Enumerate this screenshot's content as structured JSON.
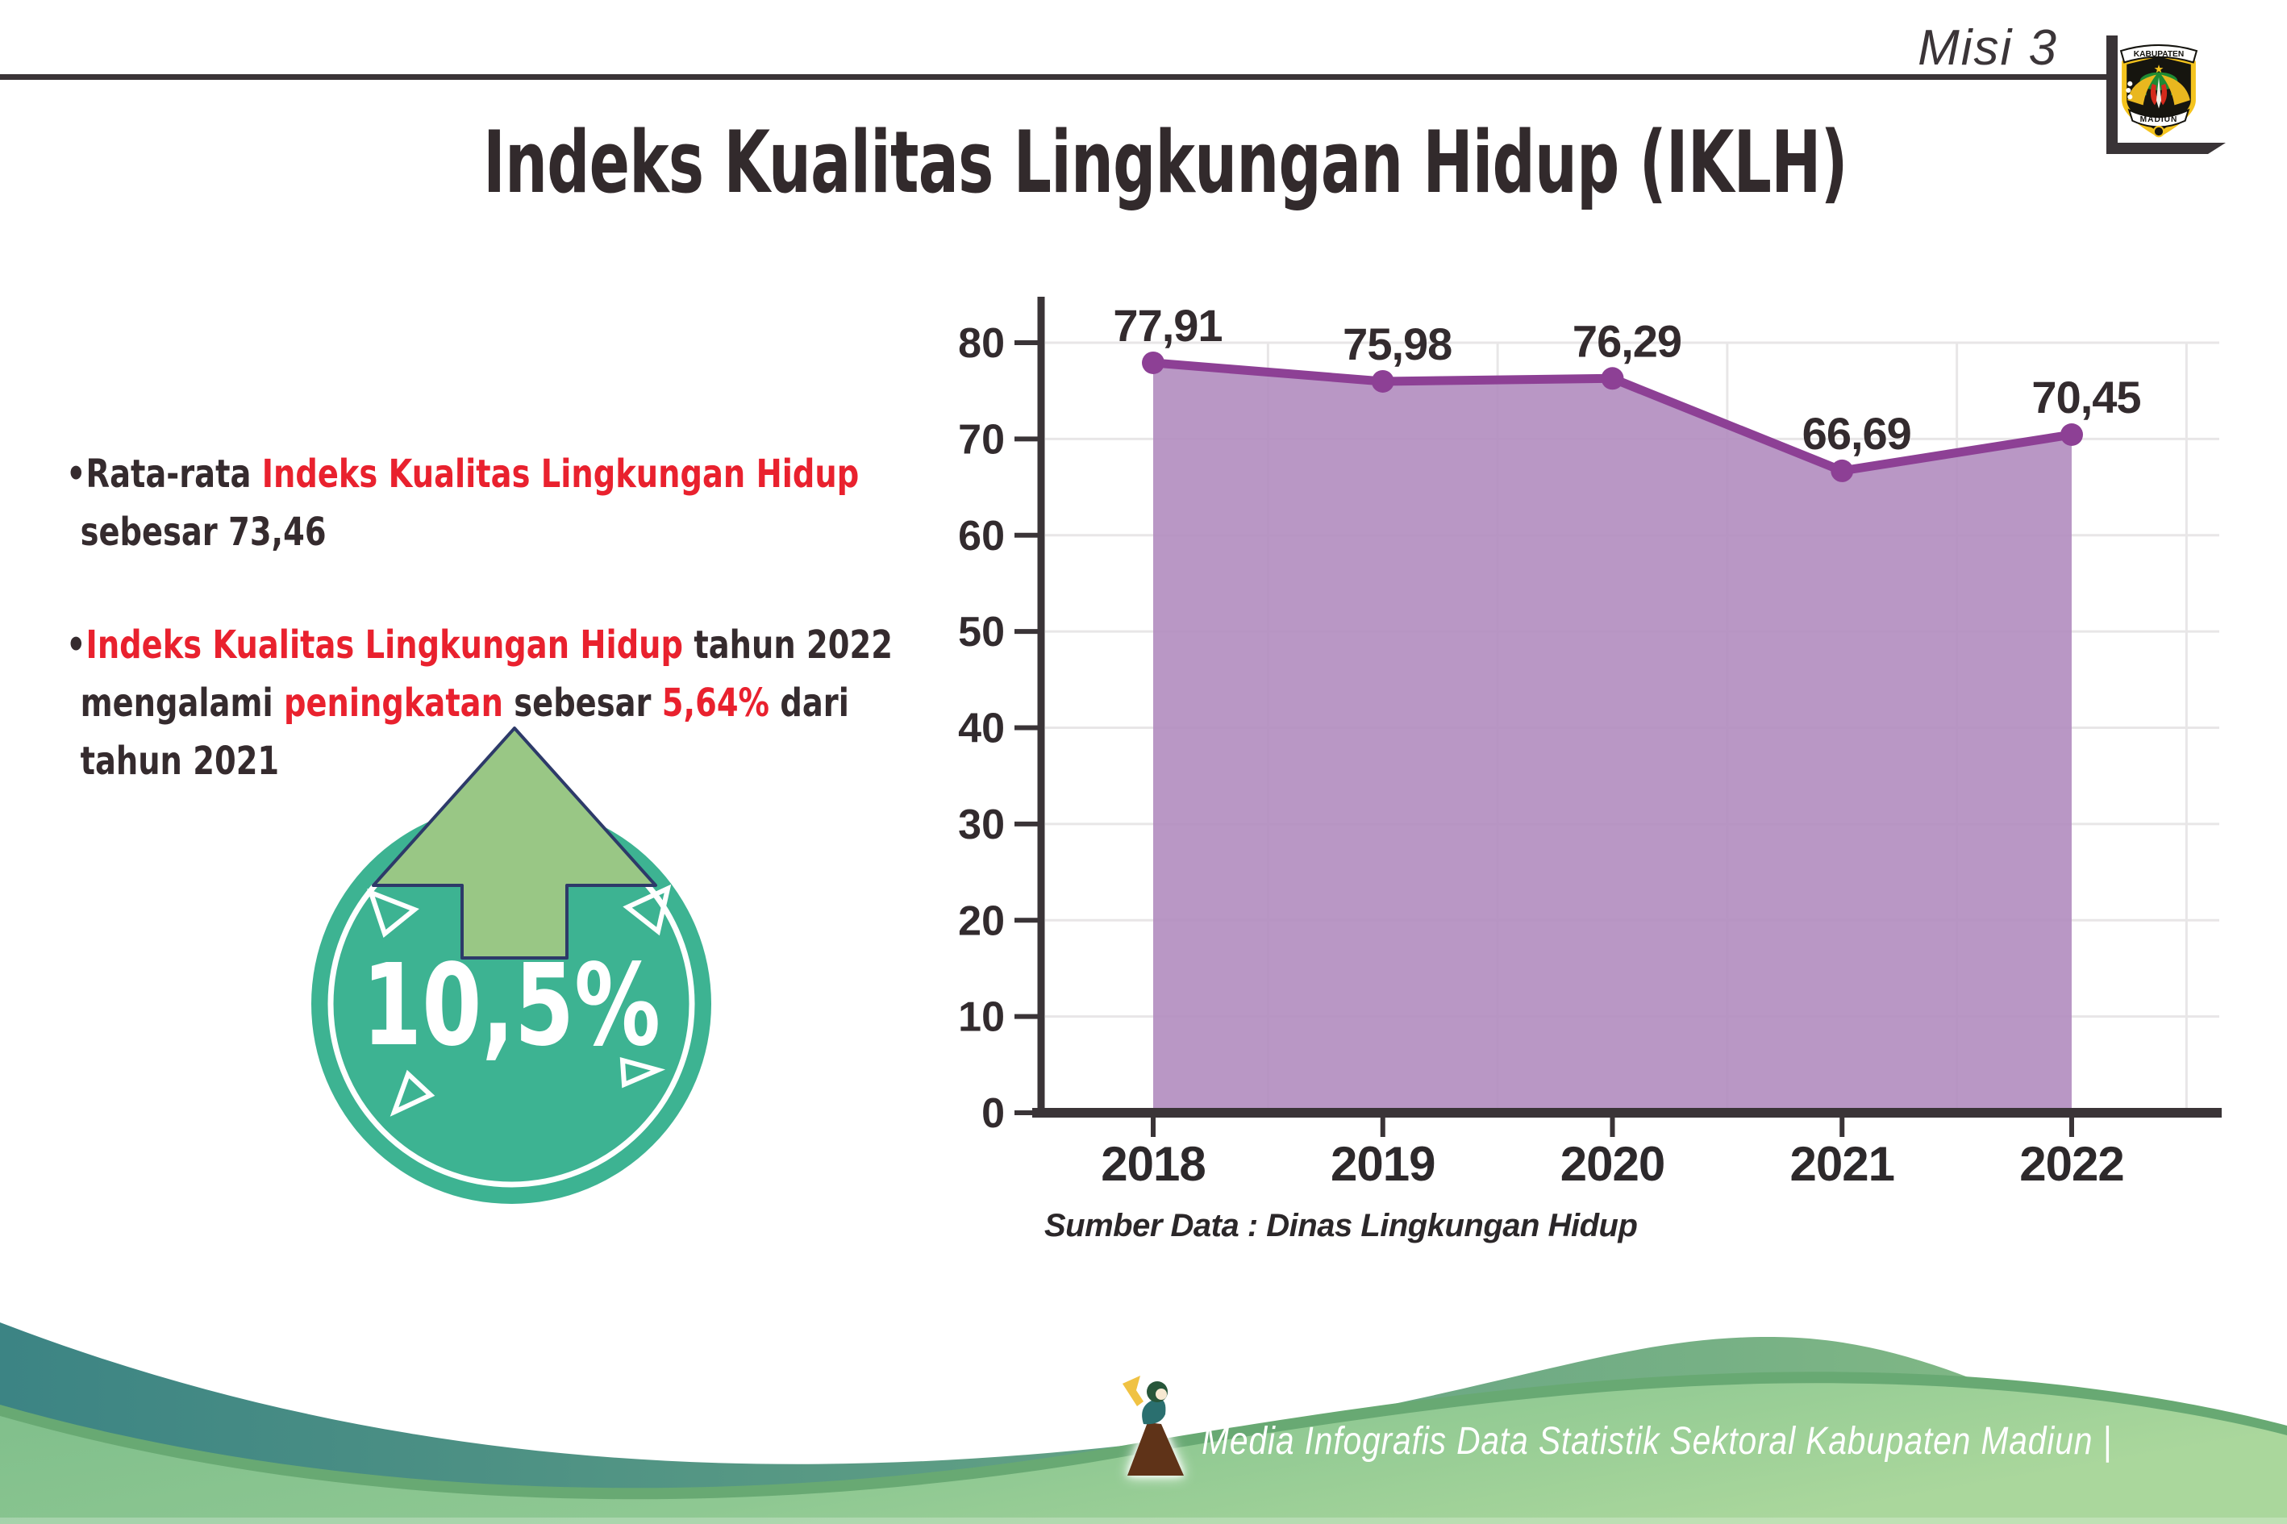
{
  "header": {
    "mission_label": "Misi 3",
    "logo": {
      "top_banner": "KABUPATEN",
      "bottom_banner": "MADIUN"
    }
  },
  "title": "Indeks Kualitas Lingkungan Hidup (IKLH)",
  "bullets": [
    {
      "segments": [
        {
          "t": "•Rata-rata ",
          "c": "dark"
        },
        {
          "t": "Indeks Kualitas Lingkungan Hidup",
          "c": "red"
        },
        {
          "t": "\nsebesar 73,46",
          "c": "dark"
        }
      ]
    },
    {
      "segments": [
        {
          "t": "•",
          "c": "dark"
        },
        {
          "t": "Indeks Kualitas Lingkungan Hidup",
          "c": "red"
        },
        {
          "t": " tahun 2022\nmengalami ",
          "c": "dark"
        },
        {
          "t": "peningkatan",
          "c": "red"
        },
        {
          "t": " sebesar ",
          "c": "dark"
        },
        {
          "t": "5,64%",
          "c": "red"
        },
        {
          "t": " dari\ntahun 2021",
          "c": "dark"
        }
      ]
    }
  ],
  "badge": {
    "value": "10,5%"
  },
  "chart_data": {
    "type": "area",
    "x": [
      "2018",
      "2019",
      "2020",
      "2021",
      "2022"
    ],
    "series": [
      {
        "name": "IKLH",
        "values": [
          77.91,
          75.98,
          76.29,
          66.69,
          70.45
        ]
      }
    ],
    "point_labels": [
      "77,91",
      "75,98",
      "76,29",
      "66,69",
      "70,45"
    ],
    "ylim": [
      0,
      80
    ],
    "ytick_step": 10,
    "grid": true,
    "legend": "none",
    "line_color": "#8d4095",
    "fill_color": "#b18cbf",
    "axis_color": "#3a3437",
    "grid_color": "#e8e6e7"
  },
  "source_note": "Sumber Data : Dinas Lingkungan Hidup",
  "footer": {
    "credit": "Media Infografis Data Statistik Sektoral Kabupaten Madiun |"
  },
  "colors": {
    "red": "#e9212e",
    "dark": "#352b2e",
    "badge_teal": "#3db392",
    "arrow_green": "#99c785",
    "arrow_outline": "#2d3a69",
    "wave_teal_left": "#3c8484",
    "wave_teal_right": "#8abf85",
    "wave_green_left": "#7fbe8b",
    "wave_green_right": "#aad79c",
    "wave_rim": "#68a973"
  }
}
